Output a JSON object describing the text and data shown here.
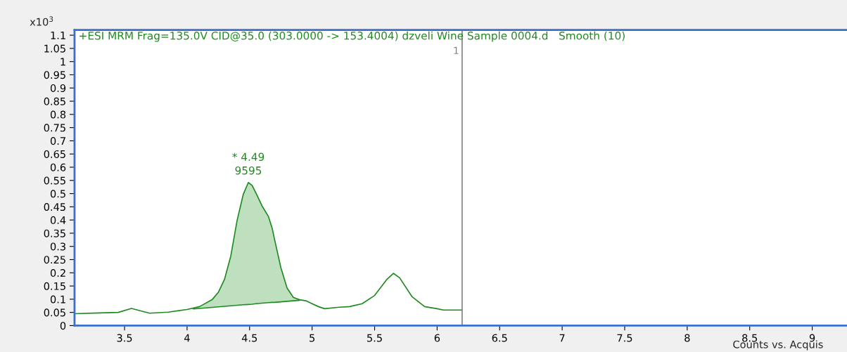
{
  "chart_data": {
    "type": "line",
    "title": "+ESI MRM Frag=135.0V CID@35.0 (303.0000 -> 153.4004) dzveli Wine Sample 0004.d   Smooth (10)",
    "xlabel": "Counts vs. Acquis",
    "ylabel": "x10$^{3}$",
    "series": [
      {
        "type": "line",
        "color": "#1f8a1f",
        "x": [
          3.1,
          3.3,
          3.45,
          3.555,
          3.7,
          3.85,
          4.0,
          4.1,
          4.2,
          4.25,
          4.3,
          4.35,
          4.4,
          4.45,
          4.49,
          4.52,
          4.55,
          4.6,
          4.65,
          4.68,
          4.7,
          4.75,
          4.8,
          4.85,
          4.9,
          4.95,
          5.0,
          5.05,
          5.1,
          5.2,
          5.3,
          5.4,
          5.5,
          5.6,
          5.65,
          5.7,
          5.8,
          5.9,
          6.0,
          6.05,
          6.2
        ],
        "values": [
          0.045,
          0.048,
          0.05,
          0.065,
          0.047,
          0.051,
          0.061,
          0.072,
          0.098,
          0.126,
          0.176,
          0.264,
          0.398,
          0.498,
          0.542,
          0.531,
          0.503,
          0.453,
          0.414,
          0.37,
          0.326,
          0.22,
          0.142,
          0.107,
          0.098,
          0.094,
          0.083,
          0.072,
          0.064,
          0.069,
          0.072,
          0.083,
          0.114,
          0.176,
          0.198,
          0.181,
          0.109,
          0.072,
          0.064,
          0.059,
          0.059
        ]
      },
      {
        "type": "area",
        "color": "#bfe0bf",
        "x": [
          4.05,
          4.1,
          4.2,
          4.25,
          4.3,
          4.35,
          4.4,
          4.45,
          4.49,
          4.52,
          4.55,
          4.6,
          4.65,
          4.68,
          4.7,
          4.75,
          4.8,
          4.85,
          4.9
        ],
        "values": [
          0.066,
          0.072,
          0.098,
          0.126,
          0.176,
          0.264,
          0.398,
          0.498,
          0.542,
          0.531,
          0.503,
          0.453,
          0.414,
          0.37,
          0.326,
          0.22,
          0.142,
          0.107,
          0.098
        ]
      },
      {
        "type": "line",
        "color": "#1f8a1f",
        "x": [
          4.05,
          4.1,
          4.2,
          4.25,
          4.3,
          4.35,
          4.4,
          4.45,
          4.49,
          4.52,
          4.55,
          4.6,
          4.65,
          4.68,
          4.7,
          4.75,
          4.8,
          4.85,
          4.9
        ],
        "values": [
          0.063,
          0.065,
          0.069,
          0.071,
          0.073,
          0.075,
          0.077,
          0.079,
          0.08,
          0.081,
          0.083,
          0.085,
          0.087,
          0.088,
          0.088,
          0.09,
          0.092,
          0.094,
          0.096
        ]
      }
    ],
    "annotations": [
      "* 4.49",
      "9595",
      "1"
    ],
    "ref_lines": [
      {
        "axis": "x",
        "value": 6.2,
        "color": "#808080"
      }
    ],
    "xlim": [
      3.1,
      9.4
    ],
    "ylim": [
      0,
      1.12
    ],
    "xticks": [
      3.5,
      4,
      4.5,
      5,
      5.5,
      6,
      6.5,
      7,
      7.5,
      8,
      8.5,
      9
    ],
    "yticks": [
      0,
      0.05,
      0.1,
      0.15,
      0.2,
      0.25,
      0.3,
      0.35,
      0.4,
      0.45,
      0.5,
      0.55,
      0.6,
      0.65,
      0.7,
      0.75,
      0.8,
      0.85,
      0.9,
      0.95,
      1,
      1.05,
      1.1
    ],
    "grid": false,
    "legend": false
  }
}
